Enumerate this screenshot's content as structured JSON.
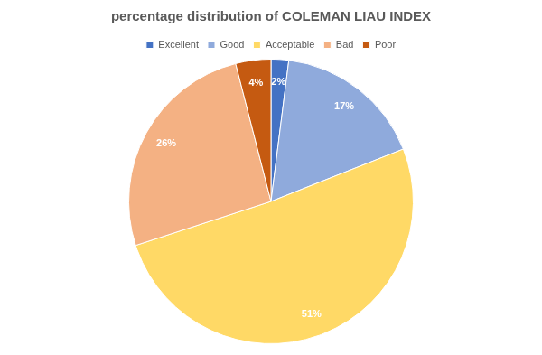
{
  "chart_data": {
    "type": "pie",
    "title": "percentage distribution of COLEMAN LIAU INDEX",
    "categories": [
      "Excellent",
      "Good",
      "Acceptable",
      "Bad",
      "Poor"
    ],
    "values": [
      2,
      17,
      51,
      26,
      4
    ],
    "value_labels": [
      "2%",
      "17%",
      "51%",
      "26%",
      "4%"
    ],
    "colors": [
      "#4472c4",
      "#8faadc",
      "#ffd966",
      "#f4b183",
      "#c55a11"
    ],
    "legend": "top",
    "data_labels": true
  }
}
